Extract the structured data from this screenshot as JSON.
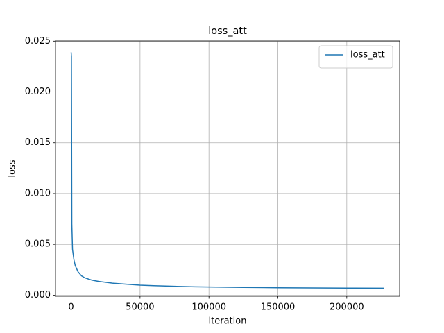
{
  "chart_data": {
    "type": "line",
    "title": "loss_att",
    "xlabel": "iteration",
    "ylabel": "loss",
    "x": [
      0,
      200,
      500,
      1000,
      2000,
      3000,
      5000,
      7500,
      10000,
      15000,
      20000,
      30000,
      40000,
      50000,
      60000,
      75000,
      90000,
      100000,
      125000,
      150000,
      175000,
      200000,
      227000
    ],
    "series": [
      {
        "name": "loss_att",
        "color": "#1f77b4",
        "values": [
          0.0239,
          0.0235,
          0.007,
          0.0045,
          0.0035,
          0.0029,
          0.0023,
          0.0019,
          0.0017,
          0.00148,
          0.00135,
          0.00118,
          0.00108,
          0.00098,
          0.00093,
          0.00087,
          0.00082,
          0.0008,
          0.00076,
          0.00073,
          0.00071,
          0.00069,
          0.00068
        ]
      }
    ],
    "xlim": [
      -11350,
      238350
    ],
    "ylim": [
      -0.00011,
      0.02502
    ],
    "xticks": [
      0,
      50000,
      100000,
      150000,
      200000
    ],
    "yticks": [
      {
        "value": 0,
        "label": "0.000"
      },
      {
        "value": 0.005,
        "label": "0.005"
      },
      {
        "value": 0.01,
        "label": "0.010"
      },
      {
        "value": 0.015,
        "label": "0.015"
      },
      {
        "value": 0.02,
        "label": "0.020"
      },
      {
        "value": 0.025,
        "label": "0.025"
      }
    ],
    "grid": true,
    "legend": "upper-right"
  }
}
